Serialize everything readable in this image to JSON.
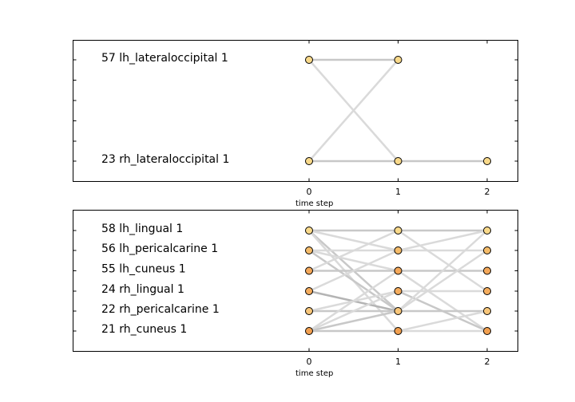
{
  "chart_data": [
    {
      "type": "network-timeline",
      "xlabel": "time step",
      "x_ticks": [
        0,
        1,
        2
      ],
      "row_labels": [
        "57 lh_lateraloccipital 1",
        "23 rh_lateraloccipital 1"
      ],
      "node_color": "#f9d98a",
      "edge_colors": {
        "light": "#dadada",
        "mid": "#c8c8c8",
        "dark": "#b4b4b4"
      },
      "nodes": [
        {
          "t": 0,
          "row": 0
        },
        {
          "t": 1,
          "row": 0
        },
        {
          "t": 0,
          "row": 1
        },
        {
          "t": 1,
          "row": 1
        },
        {
          "t": 2,
          "row": 1
        }
      ],
      "edges": [
        {
          "t0": 0,
          "r0": 0,
          "t1": 1,
          "r1": 0,
          "shade": "mid"
        },
        {
          "t0": 0,
          "r0": 0,
          "t1": 1,
          "r1": 1,
          "shade": "light"
        },
        {
          "t0": 0,
          "r0": 1,
          "t1": 1,
          "r1": 0,
          "shade": "light"
        },
        {
          "t0": 0,
          "r0": 1,
          "t1": 1,
          "r1": 1,
          "shade": "mid"
        },
        {
          "t0": 1,
          "r0": 1,
          "t1": 2,
          "r1": 1,
          "shade": "mid"
        }
      ]
    },
    {
      "type": "network-timeline",
      "xlabel": "time step",
      "x_ticks": [
        0,
        1,
        2
      ],
      "row_labels": [
        "58 lh_lingual 1",
        "56 lh_pericalcarine 1",
        "55 lh_cuneus 1",
        "24 rh_lingual 1",
        "22 rh_pericalcarine 1",
        "21 rh_cuneus 1"
      ],
      "node_colors_by_row": [
        "#f9d98a",
        "#f5bc6a",
        "#f4a85a",
        "#f5ad5e",
        "#f8c67a",
        "#f2a050"
      ],
      "nodes": [
        {
          "t": 0,
          "row": 0
        },
        {
          "t": 0,
          "row": 1
        },
        {
          "t": 0,
          "row": 2
        },
        {
          "t": 0,
          "row": 3
        },
        {
          "t": 0,
          "row": 4
        },
        {
          "t": 0,
          "row": 5
        },
        {
          "t": 1,
          "row": 0
        },
        {
          "t": 1,
          "row": 1
        },
        {
          "t": 1,
          "row": 2
        },
        {
          "t": 1,
          "row": 3
        },
        {
          "t": 1,
          "row": 4
        },
        {
          "t": 1,
          "row": 5
        },
        {
          "t": 2,
          "row": 0
        },
        {
          "t": 2,
          "row": 1
        },
        {
          "t": 2,
          "row": 2
        },
        {
          "t": 2,
          "row": 3
        },
        {
          "t": 2,
          "row": 4
        },
        {
          "t": 2,
          "row": 5
        }
      ],
      "edges": [
        {
          "t0": 0,
          "r0": 0,
          "t1": 1,
          "r1": 0,
          "shade": "mid"
        },
        {
          "t0": 0,
          "r0": 0,
          "t1": 1,
          "r1": 1,
          "shade": "light"
        },
        {
          "t0": 0,
          "r0": 0,
          "t1": 1,
          "r1": 4,
          "shade": "mid"
        },
        {
          "t0": 0,
          "r0": 0,
          "t1": 1,
          "r1": 5,
          "shade": "light"
        },
        {
          "t0": 0,
          "r0": 1,
          "t1": 1,
          "r1": 1,
          "shade": "light"
        },
        {
          "t0": 0,
          "r0": 1,
          "t1": 1,
          "r1": 2,
          "shade": "light"
        },
        {
          "t0": 0,
          "r0": 1,
          "t1": 1,
          "r1": 4,
          "shade": "mid"
        },
        {
          "t0": 0,
          "r0": 2,
          "t1": 1,
          "r1": 2,
          "shade": "mid"
        },
        {
          "t0": 0,
          "r0": 2,
          "t1": 1,
          "r1": 0,
          "shade": "light"
        },
        {
          "t0": 0,
          "r0": 3,
          "t1": 1,
          "r1": 4,
          "shade": "dark"
        },
        {
          "t0": 0,
          "r0": 3,
          "t1": 1,
          "r1": 1,
          "shade": "light"
        },
        {
          "t0": 0,
          "r0": 4,
          "t1": 1,
          "r1": 3,
          "shade": "light"
        },
        {
          "t0": 0,
          "r0": 4,
          "t1": 1,
          "r1": 4,
          "shade": "mid"
        },
        {
          "t0": 0,
          "r0": 5,
          "t1": 1,
          "r1": 5,
          "shade": "mid"
        },
        {
          "t0": 0,
          "r0": 5,
          "t1": 1,
          "r1": 2,
          "shade": "light"
        },
        {
          "t0": 0,
          "r0": 5,
          "t1": 1,
          "r1": 3,
          "shade": "light"
        },
        {
          "t0": 0,
          "r0": 5,
          "t1": 1,
          "r1": 4,
          "shade": "mid"
        },
        {
          "t0": 1,
          "r0": 0,
          "t1": 2,
          "r1": 0,
          "shade": "mid"
        },
        {
          "t0": 1,
          "r0": 0,
          "t1": 2,
          "r1": 3,
          "shade": "light"
        },
        {
          "t0": 1,
          "r0": 1,
          "t1": 2,
          "r1": 1,
          "shade": "light"
        },
        {
          "t0": 1,
          "r0": 1,
          "t1": 2,
          "r1": 0,
          "shade": "light"
        },
        {
          "t0": 1,
          "r0": 2,
          "t1": 2,
          "r1": 2,
          "shade": "mid"
        },
        {
          "t0": 1,
          "r0": 2,
          "t1": 2,
          "r1": 5,
          "shade": "light"
        },
        {
          "t0": 1,
          "r0": 3,
          "t1": 2,
          "r1": 3,
          "shade": "light"
        },
        {
          "t0": 1,
          "r0": 3,
          "t1": 2,
          "r1": 5,
          "shade": "mid"
        },
        {
          "t0": 1,
          "r0": 4,
          "t1": 2,
          "r1": 4,
          "shade": "mid"
        },
        {
          "t0": 1,
          "r0": 4,
          "t1": 2,
          "r1": 0,
          "shade": "light"
        },
        {
          "t0": 1,
          "r0": 4,
          "t1": 2,
          "r1": 1,
          "shade": "light"
        },
        {
          "t0": 1,
          "r0": 5,
          "t1": 2,
          "r1": 5,
          "shade": "light"
        },
        {
          "t0": 1,
          "r0": 5,
          "t1": 2,
          "r1": 4,
          "shade": "light"
        }
      ],
      "edge_colors": {
        "light": "#dadada",
        "mid": "#c8c8c8",
        "dark": "#b4b4b4"
      }
    }
  ]
}
